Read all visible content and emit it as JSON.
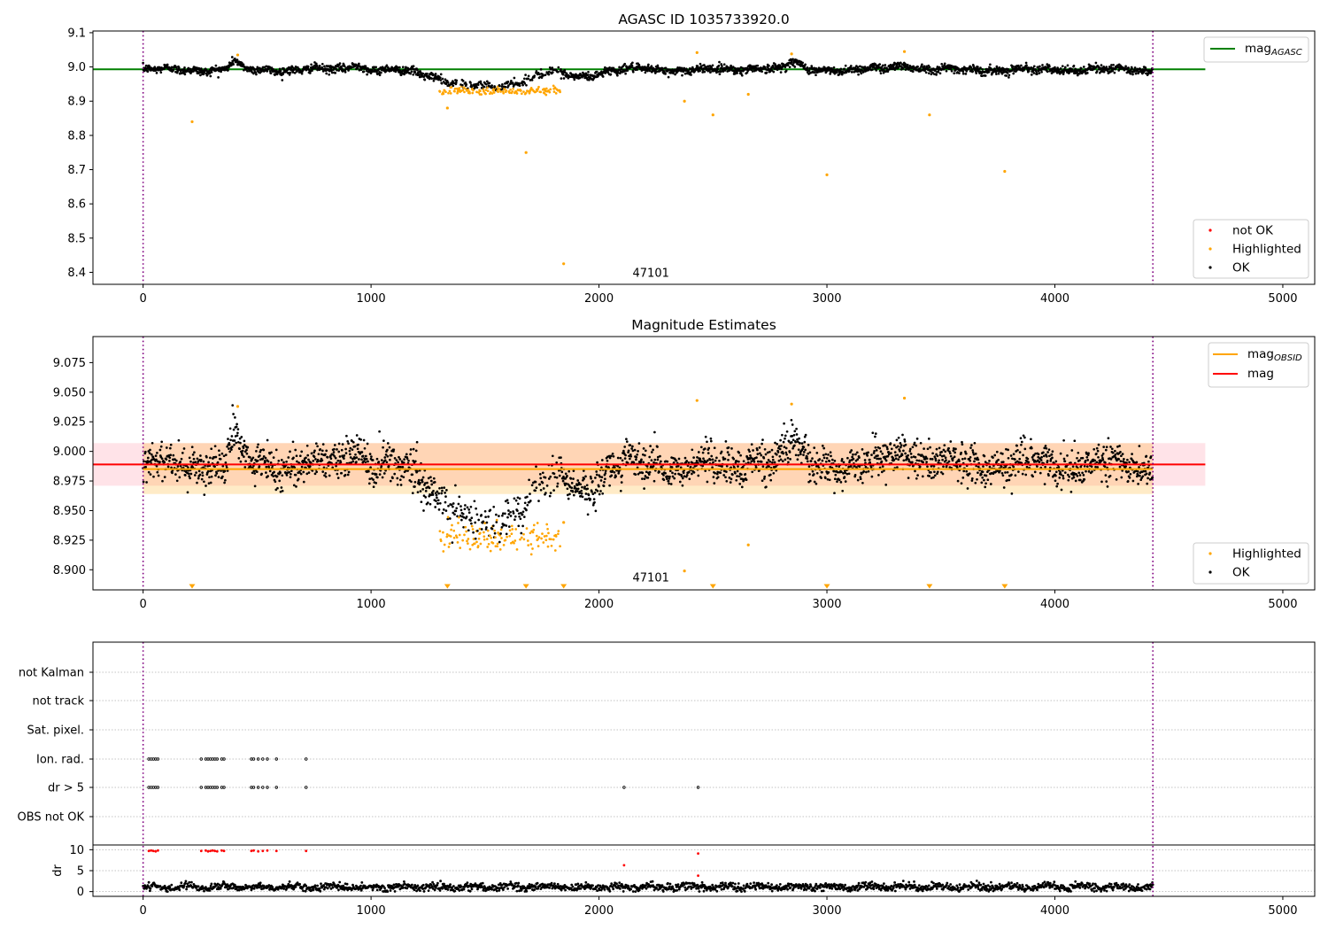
{
  "chart_data": [
    {
      "type": "scatter",
      "title": "AGASC ID 1035733920.0",
      "xlim": [
        -220,
        5140
      ],
      "ylim": [
        8.365,
        9.105
      ],
      "xticks": [
        0,
        1000,
        2000,
        3000,
        4000,
        5000
      ],
      "yticks": [
        8.4,
        8.5,
        8.6,
        8.7,
        8.8,
        8.9,
        9.0,
        9.1
      ],
      "obsid_annotation": {
        "text": "47101",
        "x": 2150,
        "y": 8.4
      },
      "obs_boundaries": [
        0,
        4430
      ],
      "reference_line": {
        "name": "mag_AGASC",
        "value": 8.993,
        "color": "#008000",
        "x_range": [
          -220,
          4660
        ]
      },
      "legend_lines": [
        {
          "label": "mag",
          "sub": "AGASC",
          "color": "#008000"
        }
      ],
      "legend_points": [
        {
          "label": "not OK",
          "color": "#ff0000"
        },
        {
          "label": "Highlighted",
          "color": "#ffa500"
        },
        {
          "label": "OK",
          "color": "#000000"
        }
      ],
      "highlighted_outliers": [
        [
          215,
          8.84
        ],
        [
          2375,
          8.9
        ],
        [
          2500,
          8.86
        ],
        [
          2655,
          8.92
        ],
        [
          1680,
          8.75
        ],
        [
          1845,
          8.425
        ],
        [
          3000,
          8.685
        ],
        [
          3450,
          8.86
        ],
        [
          3780,
          8.695
        ],
        [
          1335,
          8.88
        ],
        [
          2430,
          9.042
        ],
        [
          415,
          9.035
        ],
        [
          3340,
          9.045
        ],
        [
          2845,
          9.038
        ]
      ],
      "dip_region": {
        "x": [
          1300,
          1830
        ],
        "y_low": 8.915,
        "y_high": 8.945
      }
    },
    {
      "type": "scatter",
      "title": "Magnitude Estimates",
      "xlim": [
        -220,
        5140
      ],
      "ylim": [
        8.883,
        9.097
      ],
      "xticks": [
        0,
        1000,
        2000,
        3000,
        4000,
        5000
      ],
      "yticks": [
        8.9,
        8.925,
        8.95,
        8.975,
        9.0,
        9.025,
        9.05,
        9.075
      ],
      "ytick_labels": [
        "8.900",
        "8.925",
        "8.950",
        "8.975",
        "9.000",
        "9.025",
        "9.050",
        "9.075"
      ],
      "obsid_annotation": {
        "text": "47101",
        "x": 2150,
        "y": 8.893
      },
      "obs_boundaries": [
        0,
        4430
      ],
      "mag_line": {
        "value": 8.989,
        "color": "#ff0000",
        "x_range": [
          -220,
          4660
        ],
        "band": [
          8.971,
          9.007
        ]
      },
      "mag_obsid_line": {
        "value": 8.985,
        "color": "#ffa500",
        "x_range": [
          0,
          4430
        ],
        "band": [
          8.964,
          9.007
        ]
      },
      "legend_lines": [
        {
          "label": "mag",
          "sub": "OBSID",
          "color": "#ffa500"
        },
        {
          "label": "mag",
          "sub": "",
          "color": "#ff0000"
        }
      ],
      "legend_points": [
        {
          "label": "Highlighted",
          "color": "#ffa500"
        },
        {
          "label": "OK",
          "color": "#000000"
        }
      ],
      "clipped_markers_x": [
        215,
        1335,
        1680,
        1845,
        2500,
        3000,
        3450,
        3780
      ],
      "highlighted_outliers": [
        [
          2375,
          8.899
        ],
        [
          2655,
          8.921
        ],
        [
          1845,
          8.94
        ],
        [
          2430,
          9.043
        ],
        [
          415,
          9.038
        ],
        [
          3340,
          9.045
        ],
        [
          2845,
          9.04
        ]
      ]
    },
    {
      "type": "scatter",
      "title": "",
      "xlim": [
        -220,
        5140
      ],
      "xticks": [
        0,
        1000,
        2000,
        3000,
        4000,
        5000
      ],
      "obs_boundaries": [
        0,
        4430
      ],
      "flag_rows": [
        "not Kalman",
        "not track",
        "Sat. pixel.",
        "Ion. rad.",
        "dr > 5",
        "OBS not OK"
      ],
      "flag_points": {
        "Ion. rad.": [
          25,
          35,
          45,
          55,
          65,
          255,
          275,
          285,
          295,
          305,
          315,
          325,
          345,
          355,
          475,
          485,
          505,
          525,
          545,
          585,
          715
        ],
        "dr > 5": [
          25,
          35,
          45,
          55,
          65,
          255,
          275,
          285,
          295,
          305,
          315,
          325,
          345,
          355,
          475,
          485,
          505,
          525,
          545,
          585,
          715,
          2110,
          2435
        ]
      },
      "dr_ylabel": "dr",
      "dr_ylim": [
        -0.5,
        10.5
      ],
      "dr_yticks": [
        0,
        5,
        10
      ],
      "dr_high_points": [
        [
          25,
          9.7
        ],
        [
          35,
          9.8
        ],
        [
          45,
          9.7
        ],
        [
          55,
          9.6
        ],
        [
          65,
          9.8
        ],
        [
          255,
          9.7
        ],
        [
          275,
          9.8
        ],
        [
          285,
          9.6
        ],
        [
          295,
          9.7
        ],
        [
          305,
          9.8
        ],
        [
          315,
          9.7
        ],
        [
          325,
          9.6
        ],
        [
          345,
          9.8
        ],
        [
          355,
          9.7
        ],
        [
          475,
          9.7
        ],
        [
          485,
          9.8
        ],
        [
          505,
          9.6
        ],
        [
          525,
          9.7
        ],
        [
          545,
          9.8
        ],
        [
          585,
          9.7
        ],
        [
          715,
          9.7
        ],
        [
          2110,
          6.3
        ],
        [
          2435,
          9.1
        ],
        [
          2435,
          3.8
        ]
      ]
    }
  ]
}
